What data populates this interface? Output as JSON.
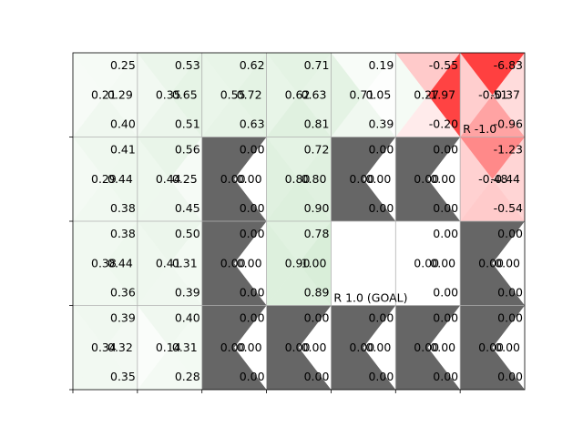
{
  "chart_data": {
    "type": "heatmap",
    "grid": {
      "rows": 4,
      "cols": 7
    },
    "cell_layout": "each cell split into four triangles showing values for directions up, left, right, down",
    "colors": {
      "positive": "#2ca02c",
      "negative": "#ff0000",
      "wall": "#666666",
      "grid": "#b0b0b0",
      "background": "#ffffff"
    },
    "cells": [
      [
        {
          "up": "0.25",
          "left": "0.21",
          "right": "0.29",
          "down": "0.40"
        },
        {
          "up": "0.53",
          "left": "0.35",
          "right": "0.65",
          "down": "0.51"
        },
        {
          "up": "0.62",
          "left": "0.55",
          "right": "0.72",
          "down": "0.63"
        },
        {
          "up": "0.71",
          "left": "0.62",
          "right": "0.63",
          "down": "0.81"
        },
        {
          "up": "0.19",
          "left": "0.71",
          "right": "0.05",
          "down": "0.39"
        },
        {
          "up": "-0.55",
          "left": "0.27",
          "right": "-1.97",
          "down": "-0.20"
        },
        {
          "up": "-6.83",
          "left": "-0.51",
          "right": "-0.37",
          "down": "-0.96",
          "label": "R -1.0"
        }
      ],
      [
        {
          "up": "0.41",
          "left": "0.29",
          "right": "0.44",
          "down": "0.38"
        },
        {
          "up": "0.56",
          "left": "0.44",
          "right": "0.25",
          "down": "0.45"
        },
        {
          "wall": true,
          "up": "0.00",
          "left": "0.00",
          "right": "0.00",
          "down": "0.00"
        },
        {
          "up": "0.72",
          "left": "0.80",
          "right": "0.80",
          "down": "0.90"
        },
        {
          "wall": true,
          "up": "0.00",
          "left": "0.00",
          "right": "0.00",
          "down": "0.00"
        },
        {
          "wall": true,
          "up": "0.00",
          "left": "0.00",
          "right": "0.00",
          "down": "0.00"
        },
        {
          "up": "-1.23",
          "left": "-0.48",
          "right": "-0.44",
          "down": "-0.54"
        }
      ],
      [
        {
          "up": "0.38",
          "left": "0.38",
          "right": "0.44",
          "down": "0.36"
        },
        {
          "up": "0.50",
          "left": "0.41",
          "right": "0.31",
          "down": "0.39"
        },
        {
          "wall": true,
          "up": "0.00",
          "left": "0.00",
          "right": "0.00",
          "down": "0.00"
        },
        {
          "up": "0.78",
          "left": "0.90",
          "right": "1.00",
          "down": "0.89"
        },
        {
          "goal": true,
          "up": "",
          "left": "",
          "right": "",
          "down": "",
          "label": "R 1.0 (GOAL)"
        },
        {
          "up": "0.00",
          "left": "0.00",
          "right": "0.00",
          "down": "0.00"
        },
        {
          "wall": true,
          "up": "0.00",
          "left": "0.00",
          "right": "0.00",
          "down": "0.00"
        }
      ],
      [
        {
          "up": "0.39",
          "left": "0.34",
          "right": "0.32",
          "down": "0.35"
        },
        {
          "up": "0.40",
          "left": "0.14",
          "right": "0.31",
          "down": "0.28"
        },
        {
          "wall": true,
          "up": "0.00",
          "left": "0.00",
          "right": "0.00",
          "down": "0.00"
        },
        {
          "wall": true,
          "up": "0.00",
          "left": "0.00",
          "right": "0.00",
          "down": "0.00"
        },
        {
          "wall": true,
          "up": "0.00",
          "left": "0.00",
          "right": "0.00",
          "down": "0.00"
        },
        {
          "wall": true,
          "up": "0.00",
          "left": "0.00",
          "right": "0.00",
          "down": "0.00"
        },
        {
          "wall": true,
          "up": "0.00",
          "left": "0.00",
          "right": "0.00",
          "down": "0.00"
        }
      ]
    ],
    "title": "",
    "xlabel": "",
    "ylabel": "",
    "grid_lines": true,
    "legend": "none"
  }
}
